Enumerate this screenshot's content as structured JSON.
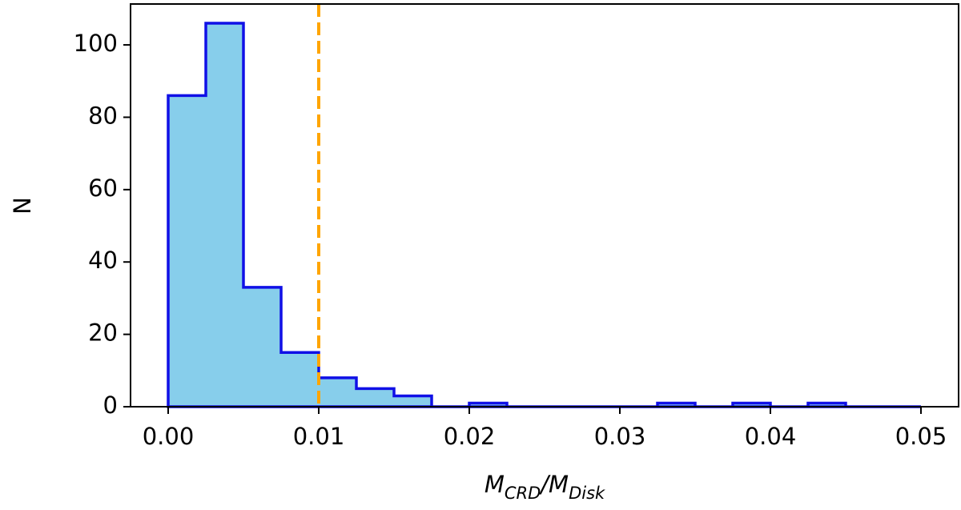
{
  "chart_data": {
    "type": "histogram",
    "bins": [
      0,
      0.0025,
      0.005,
      0.0075,
      0.01,
      0.0125,
      0.015,
      0.0175,
      0.02,
      0.0225,
      0.025,
      0.0275,
      0.03,
      0.0325,
      0.035,
      0.0375,
      0.04,
      0.0425,
      0.045,
      0.0475,
      0.05
    ],
    "values": [
      86,
      106,
      33,
      15,
      8,
      5,
      3,
      0,
      1,
      0,
      0,
      0,
      0,
      1,
      0,
      1,
      0,
      1,
      0,
      0
    ],
    "color": "#87ceeb",
    "edgecolor": "#1010e6",
    "threshold": 0.01,
    "threshold_color": "#ffa500",
    "xlim": [
      -0.0025,
      0.0525
    ],
    "ylim": [
      0,
      111.3
    ],
    "xticks": [
      {
        "value": 0,
        "label": "0.00"
      },
      0.01,
      0.02,
      0.03,
      0.04,
      0.05
    ],
    "yticks": [
      0,
      20,
      40,
      60,
      80,
      100
    ],
    "xlabel": [
      "M",
      "CRD",
      "/M",
      "Disk"
    ],
    "ylabel": "N",
    "grid": false
  }
}
